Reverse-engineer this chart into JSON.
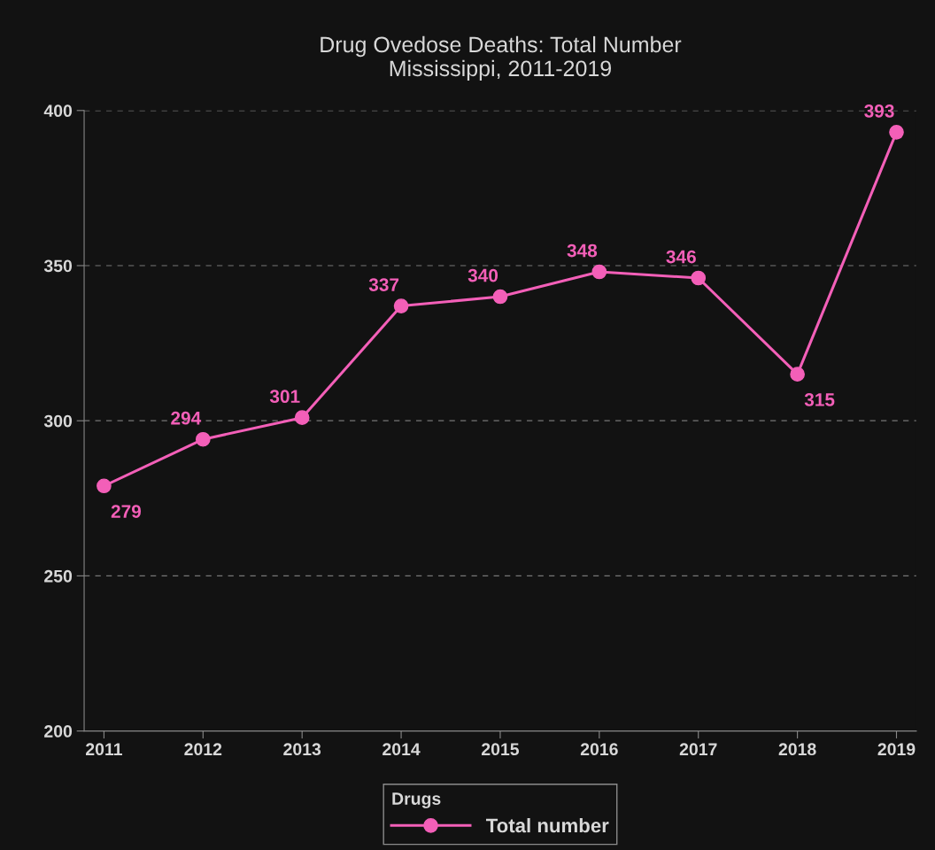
{
  "chart_data": {
    "type": "line",
    "title": "Drug Ovedose Deaths: Total Number\nMississippi, 2011-2019",
    "categories": [
      "2011",
      "2012",
      "2013",
      "2014",
      "2015",
      "2016",
      "2017",
      "2018",
      "2019"
    ],
    "series": [
      {
        "name": "Total number",
        "color": "#f35fb8",
        "values": [
          279,
          294,
          301,
          337,
          340,
          348,
          346,
          315,
          393
        ]
      }
    ],
    "legend_title": "Drugs",
    "legend": "bottom",
    "ylim": [
      200,
      400
    ],
    "yticks": [
      200,
      250,
      300,
      350,
      400
    ],
    "grid": "y",
    "marker": "circle",
    "line_style": "solid",
    "data_labels": true
  }
}
